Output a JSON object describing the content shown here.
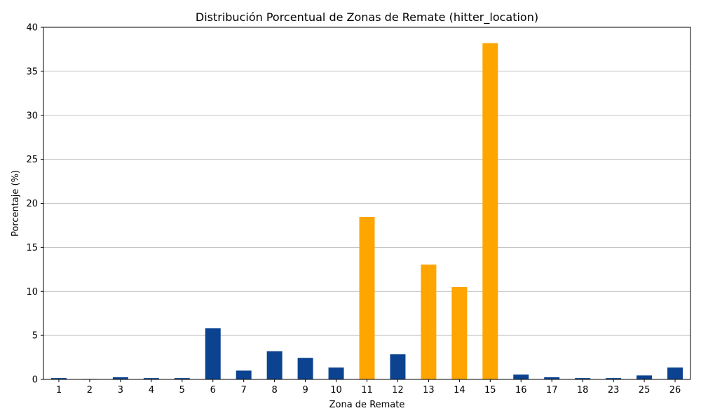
{
  "chart_data": {
    "type": "bar",
    "title": "Distribución Porcentual de Zonas de Remate (hitter_location)",
    "xlabel": "Zona de Remate",
    "ylabel": "Porcentaje (%)",
    "ylim": [
      0,
      40
    ],
    "yticks": [
      0,
      5,
      10,
      15,
      20,
      25,
      30,
      35,
      40
    ],
    "grid": "horizontal",
    "categories": [
      "1",
      "2",
      "3",
      "4",
      "5",
      "6",
      "7",
      "8",
      "9",
      "10",
      "11",
      "12",
      "13",
      "14",
      "15",
      "16",
      "17",
      "18",
      "23",
      "25",
      "26"
    ],
    "values": [
      0.15,
      0.05,
      0.25,
      0.15,
      0.15,
      5.8,
      1.0,
      3.2,
      2.45,
      1.35,
      18.45,
      2.85,
      13.05,
      10.5,
      38.2,
      0.55,
      0.25,
      0.15,
      0.15,
      0.45,
      1.35
    ],
    "highlighted": [
      "11",
      "13",
      "14",
      "15"
    ],
    "colors": {
      "default": "#0b4391",
      "highlight": "#ffa500",
      "grid": "#b0b0b0"
    }
  }
}
